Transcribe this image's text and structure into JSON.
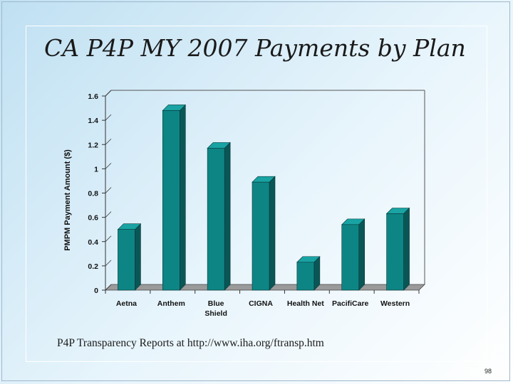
{
  "slide": {
    "title": "CA P4P MY 2007 Payments by Plan",
    "footer_note": "P4P Transparency Reports at http://www.iha.org/ftransp.htm",
    "page_number": "98"
  },
  "colors": {
    "bar_front": "#0e8585",
    "bar_top": "#19a3a3",
    "bar_side": "#0a5656",
    "floor": "#9a9a9a"
  },
  "chart_data": {
    "type": "bar",
    "title": "",
    "xlabel": "",
    "ylabel": "PMPM Payment Amount ($)",
    "categories": [
      [
        "Aetna"
      ],
      [
        "Anthem"
      ],
      [
        "Blue",
        "Shield"
      ],
      [
        "CIGNA"
      ],
      [
        "Health Net"
      ],
      [
        "PacifiCare"
      ],
      [
        "Western"
      ]
    ],
    "values": [
      0.5,
      1.48,
      1.17,
      0.89,
      0.23,
      0.54,
      0.63
    ],
    "ylim": [
      0,
      1.6
    ],
    "yticks": [
      "0",
      "0.2",
      "0.4",
      "0.6",
      "0.8",
      "1",
      "1.2",
      "1.4",
      "1.6"
    ],
    "grid": false,
    "legend": "none",
    "style": "3d-bar"
  }
}
